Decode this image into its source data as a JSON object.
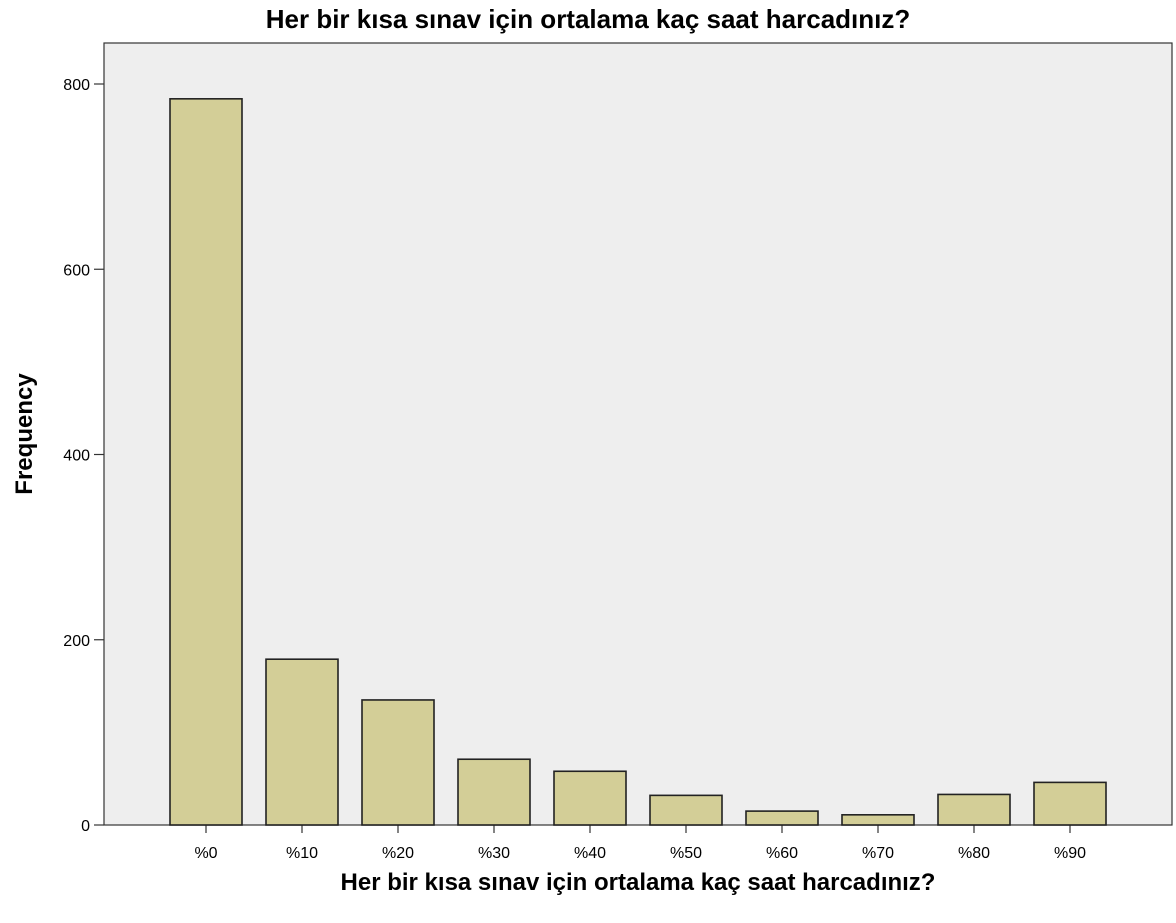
{
  "chart_data": {
    "type": "bar",
    "title": "Her bir kısa sınav için ortalama kaç saat harcadınız?",
    "xlabel": "Her bir kısa sınav için ortalama kaç saat harcadınız?",
    "ylabel": "Frequency",
    "categories": [
      "%0",
      "%10",
      "%20",
      "%30",
      "%40",
      "%50",
      "%60",
      "%70",
      "%80",
      "%90"
    ],
    "values": [
      784,
      179,
      135,
      71,
      58,
      32,
      15,
      11,
      33,
      46
    ],
    "ylim": [
      0,
      800
    ],
    "yticks": [
      0,
      200,
      400,
      600,
      800
    ],
    "ytick_labels": [
      "0",
      "200",
      "400",
      "600",
      "800"
    ],
    "grid": false,
    "legend": "none",
    "colors": {
      "bar_fill": "#d3ce97",
      "bar_stroke": "#222222",
      "plot_background": "#eeeeee"
    }
  }
}
